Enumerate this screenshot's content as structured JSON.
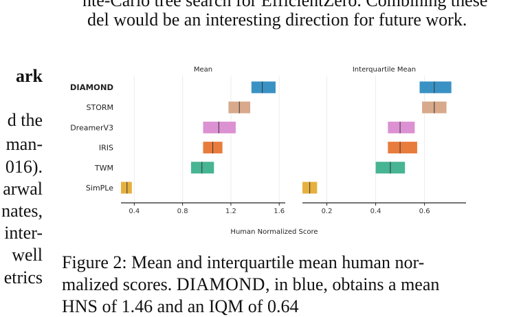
{
  "paper": {
    "top_lines": [
      "nte-Carlo tree search for EfficientZero. Combining these",
      "del would be an interesting direction for future work."
    ],
    "left_heading": "ark",
    "left_fragments": [
      "d the",
      "man-",
      "016).",
      "arwal",
      "nates,",
      "inter-",
      "well",
      "etrics"
    ],
    "caption": {
      "line1": "Figure 2: Mean and interquartile mean human nor-",
      "line2_pre": "malized scores. ",
      "line2_sc": "DIAMOND",
      "line2_post": ", in blue, obtains a mean",
      "line3": "HNS of 1.46 and an IQM of 0.64"
    }
  },
  "chart_data": {
    "type": "interval",
    "xlabel": "Human Normalized Score",
    "methods": [
      "DIAMOND",
      "STORM",
      "DreamerV3",
      "IRIS",
      "TWM",
      "SimPLe"
    ],
    "colors": {
      "DIAMOND": "#3a92c4",
      "STORM": "#d8a98b",
      "DreamerV3": "#dc92d2",
      "IRIS": "#e87c3d",
      "TWM": "#47b493",
      "SimPLe": "#e6b03e"
    },
    "panels": [
      {
        "title": "Mean",
        "xlim": [
          0.29,
          1.65
        ],
        "ticks": [
          0.4,
          0.8,
          1.2,
          1.6
        ],
        "tick_labels": [
          "0.4",
          "0.8",
          "1.2",
          "1.6"
        ],
        "intervals": [
          {
            "name": "DIAMOND",
            "low": 1.37,
            "point": 1.46,
            "high": 1.57
          },
          {
            "name": "STORM",
            "low": 1.18,
            "point": 1.27,
            "high": 1.36
          },
          {
            "name": "DreamerV3",
            "low": 0.97,
            "point": 1.1,
            "high": 1.24
          },
          {
            "name": "IRIS",
            "low": 0.97,
            "point": 1.05,
            "high": 1.13
          },
          {
            "name": "TWM",
            "low": 0.87,
            "point": 0.96,
            "high": 1.06
          },
          {
            "name": "SimPLe",
            "low": 0.29,
            "point": 0.34,
            "high": 0.38
          }
        ]
      },
      {
        "title": "Interquartile Mean",
        "xlim": [
          0.1,
          0.77
        ],
        "ticks": [
          0.2,
          0.4,
          0.6
        ],
        "tick_labels": [
          "0.2",
          "0.4",
          "0.6"
        ],
        "intervals": [
          {
            "name": "DIAMOND",
            "low": 0.58,
            "point": 0.64,
            "high": 0.71
          },
          {
            "name": "STORM",
            "low": 0.59,
            "point": 0.64,
            "high": 0.69
          },
          {
            "name": "DreamerV3",
            "low": 0.45,
            "point": 0.5,
            "high": 0.56
          },
          {
            "name": "IRIS",
            "low": 0.45,
            "point": 0.5,
            "high": 0.57
          },
          {
            "name": "TWM",
            "low": 0.4,
            "point": 0.46,
            "high": 0.52
          },
          {
            "name": "SimPLe",
            "low": 0.1,
            "point": 0.13,
            "high": 0.16
          }
        ]
      }
    ]
  }
}
